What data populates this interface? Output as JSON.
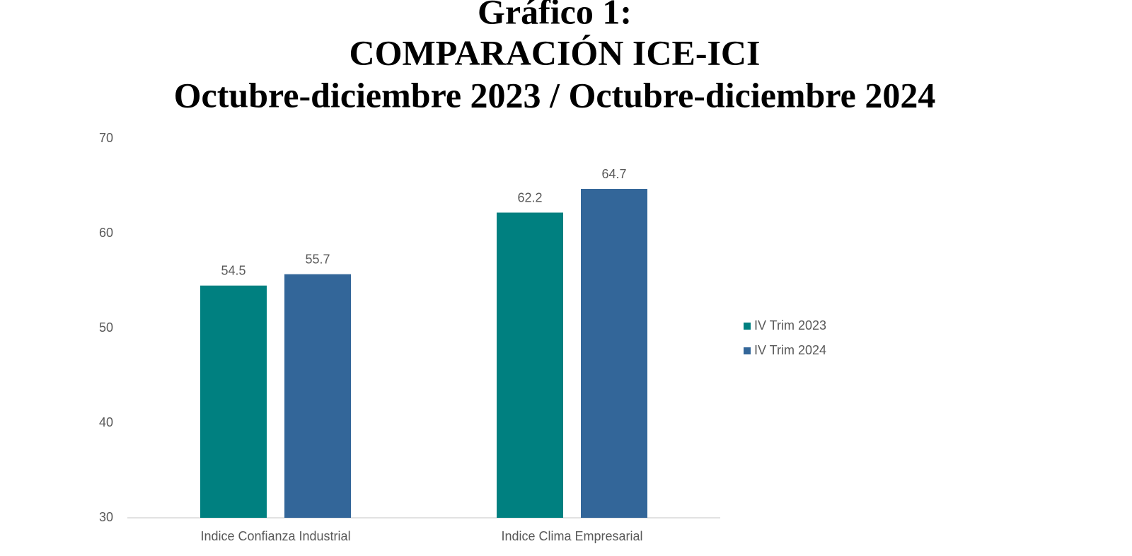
{
  "chart_data": {
    "type": "bar",
    "title": [
      "Gráfico 1:",
      "COMPARACIÓN ICE-ICI",
      "Octubre-diciembre 2023 / Octubre-diciembre 2024"
    ],
    "categories": [
      "Indice Confianza Industrial",
      "Indice Clima Empresarial"
    ],
    "series": [
      {
        "name": "IV Trim 2023",
        "color": "#008080",
        "values": [
          54.5,
          62.2
        ]
      },
      {
        "name": "IV Trim 2024",
        "color": "#336699",
        "values": [
          55.7,
          64.7
        ]
      }
    ],
    "ylim": [
      30,
      70
    ],
    "yticks": [
      30,
      40,
      50,
      60,
      70
    ],
    "grid": false,
    "legend": "right"
  }
}
